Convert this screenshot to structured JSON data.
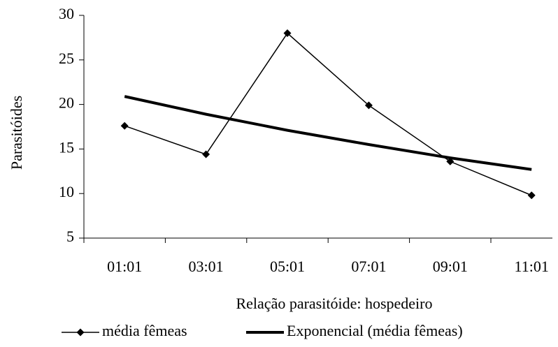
{
  "chart_data": {
    "type": "line",
    "categories": [
      "01:01",
      "03:01",
      "05:01",
      "07:01",
      "09:01",
      "11:01"
    ],
    "series": [
      {
        "name": "média fêmeas",
        "color": "#000000",
        "marker": "diamond",
        "values": [
          17.6,
          14.4,
          28.0,
          19.9,
          13.6,
          9.8
        ]
      },
      {
        "name": "Exponencial (média fêmeas)",
        "color": "#000000",
        "marker": "none",
        "values": [
          20.9,
          18.9,
          17.1,
          15.5,
          14.0,
          12.7
        ]
      }
    ],
    "ylim": [
      5,
      30
    ],
    "yticks": [
      5,
      10,
      15,
      20,
      25,
      30
    ],
    "xlabel": "Relação parasitóide: hospedeiro",
    "ylabel": "Parasitóides",
    "legend": "bottom",
    "grid": false
  }
}
